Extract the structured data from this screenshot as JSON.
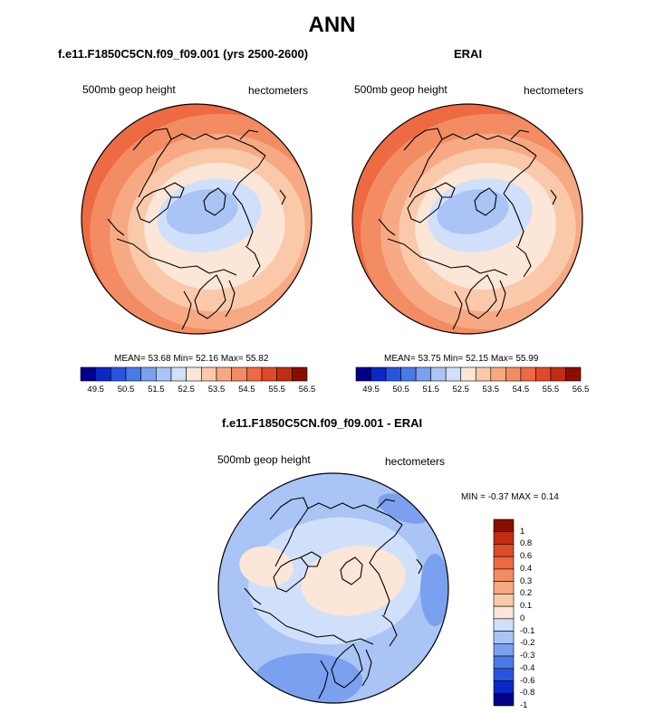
{
  "title": "ANN",
  "palette": {
    "diverging": [
      "#00008b",
      "#0a28c8",
      "#2855e0",
      "#4a7ae8",
      "#7aa0ef",
      "#a9c4f5",
      "#d0e0fa",
      "#fbe6d8",
      "#fac9aa",
      "#f7a984",
      "#f38c63",
      "#ee6a42",
      "#e04a26",
      "#c22d12",
      "#8a0e00"
    ]
  },
  "chart_data": [
    {
      "type": "heatmap",
      "projection": "polar-stereographic (north)",
      "case_title": "f.e11.F1850C5CN.f09_f09.001 (yrs 2500-2600)",
      "left_label": "500mb geop height",
      "right_label": "hectometers",
      "stats_text": "MEAN=  53.68  Min=  52.16  Max=  55.82",
      "mean": 53.68,
      "min": 52.16,
      "max": 55.82,
      "colorbar": {
        "orientation": "horizontal",
        "ticks": [
          "49.5",
          "50.5",
          "51.5",
          "52.5",
          "53.5",
          "54.5",
          "55.5",
          "56.5"
        ]
      }
    },
    {
      "type": "heatmap",
      "projection": "polar-stereographic (north)",
      "case_title": "ERAI",
      "left_label": "500mb geop height",
      "right_label": "hectometers",
      "stats_text": "MEAN=  53.75  Min=  52.15  Max=  55.99",
      "mean": 53.75,
      "min": 52.15,
      "max": 55.99,
      "colorbar": {
        "orientation": "horizontal",
        "ticks": [
          "49.5",
          "50.5",
          "51.5",
          "52.5",
          "53.5",
          "54.5",
          "55.5",
          "56.5"
        ]
      }
    },
    {
      "type": "heatmap",
      "projection": "polar-stereographic (north)",
      "case_title": "f.e11.F1850C5CN.f09_f09.001 - ERAI",
      "left_label": "500mb geop height",
      "right_label": "hectometers",
      "stats_text": "MIN = -0.37 MAX =   0.14",
      "min": -0.37,
      "max": 0.14,
      "colorbar": {
        "orientation": "vertical",
        "ticks": [
          "1",
          "0.8",
          "0.6",
          "0.4",
          "0.3",
          "0.2",
          "0.1",
          "0",
          "-0.1",
          "-0.2",
          "-0.3",
          "-0.4",
          "-0.6",
          "-0.8",
          "-1"
        ]
      }
    }
  ]
}
